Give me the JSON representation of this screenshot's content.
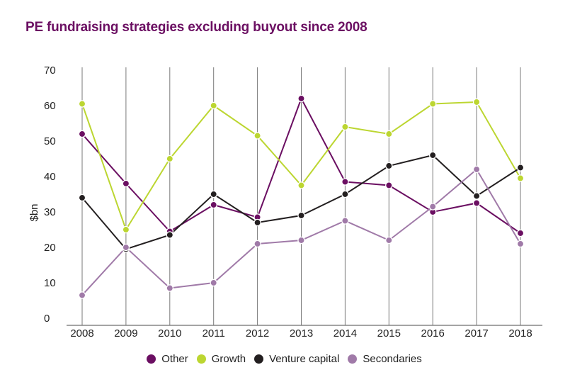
{
  "title": "PE fundraising strategies excluding buyout since 2008",
  "chart_data": {
    "type": "line",
    "title": "PE fundraising strategies excluding buyout since 2008",
    "xlabel": "",
    "ylabel": "$bn",
    "x": [
      "2008",
      "2009",
      "2010",
      "2011",
      "2012",
      "2013",
      "2014",
      "2015",
      "2016",
      "2017",
      "2018"
    ],
    "ylim": [
      0,
      70
    ],
    "yticks": [
      0,
      10,
      20,
      30,
      40,
      50,
      60,
      70
    ],
    "grid": "vertical",
    "legend": "bottom-center",
    "series": [
      {
        "name": "Other",
        "color": "#6b0f62",
        "values": [
          52,
          38,
          24.5,
          32,
          28.5,
          62,
          38.5,
          37.5,
          30,
          32.5,
          24
        ]
      },
      {
        "name": "Growth",
        "color": "#bcd631",
        "values": [
          60.5,
          25,
          45,
          60,
          51.5,
          37.5,
          54,
          52,
          60.5,
          61,
          39.5
        ]
      },
      {
        "name": "Venture capital",
        "color": "#231f20",
        "values": [
          34,
          19.5,
          23.5,
          35,
          27,
          29,
          35,
          43,
          46,
          34.5,
          42.5
        ]
      },
      {
        "name": "Secondaries",
        "color": "#a07aa8",
        "values": [
          6.5,
          20,
          8.5,
          10,
          21,
          22,
          27.5,
          22,
          31.5,
          42,
          21
        ]
      }
    ]
  }
}
